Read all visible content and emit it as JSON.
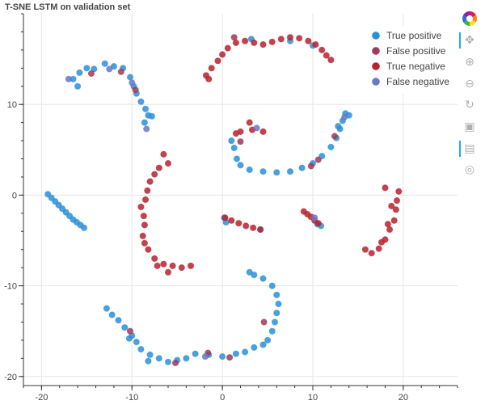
{
  "chart_data": {
    "type": "scatter",
    "title": "T-SNE LSTM on validation set",
    "xlabel": "",
    "ylabel": "",
    "xlim": [
      -22,
      26
    ],
    "ylim": [
      -21,
      20
    ],
    "x_ticks": [
      -20,
      -10,
      0,
      10,
      20
    ],
    "y_ticks": [
      -20,
      -10,
      0,
      10
    ],
    "grid": true,
    "legend_position": "top-right",
    "series": [
      {
        "name": "True positive",
        "color": "#2b8fd8",
        "points": [
          [
            -16.5,
            12.8
          ],
          [
            -15.8,
            13.5
          ],
          [
            -15.0,
            14.0
          ],
          [
            -14.2,
            13.9
          ],
          [
            -13.0,
            14.5
          ],
          [
            -12.0,
            14.2
          ],
          [
            -11.0,
            14.0
          ],
          [
            -10.2,
            13.0
          ],
          [
            -9.8,
            12.0
          ],
          [
            -9.5,
            11.2
          ],
          [
            -9.0,
            10.3
          ],
          [
            -8.5,
            9.5
          ],
          [
            -8.2,
            8.8
          ],
          [
            -8.6,
            8.0
          ],
          [
            -7.8,
            8.7
          ],
          [
            -16.0,
            12.0
          ],
          [
            -19.3,
            0.1
          ],
          [
            -18.9,
            -0.3
          ],
          [
            -18.5,
            -0.7
          ],
          [
            -18.1,
            -1.1
          ],
          [
            -17.7,
            -1.5
          ],
          [
            -17.3,
            -1.9
          ],
          [
            -16.9,
            -2.3
          ],
          [
            -16.5,
            -2.7
          ],
          [
            -16.1,
            -3.0
          ],
          [
            -15.7,
            -3.3
          ],
          [
            -15.3,
            -3.6
          ],
          [
            -12.8,
            -12.5
          ],
          [
            -12.2,
            -13.2
          ],
          [
            -11.5,
            -13.8
          ],
          [
            -10.8,
            -14.6
          ],
          [
            -10.0,
            -15.5
          ],
          [
            -9.5,
            -16.2
          ],
          [
            -9.0,
            -17.0
          ],
          [
            -8.0,
            -17.6
          ],
          [
            -7.0,
            -18.0
          ],
          [
            -6.0,
            -18.4
          ],
          [
            -5.0,
            -18.2
          ],
          [
            -4.0,
            -18.0
          ],
          [
            -3.0,
            -17.5
          ],
          [
            -1.5,
            -17.6
          ],
          [
            0.0,
            -17.8
          ],
          [
            1.5,
            -17.5
          ],
          [
            2.5,
            -17.3
          ],
          [
            3.5,
            -16.8
          ],
          [
            4.5,
            -16.5
          ],
          [
            5.0,
            -16.0
          ],
          [
            5.5,
            -15.0
          ],
          [
            5.8,
            -14.0
          ],
          [
            6.0,
            -13.0
          ],
          [
            6.2,
            -12.0
          ],
          [
            6.0,
            -11.0
          ],
          [
            5.5,
            -10.0
          ],
          [
            4.5,
            -9.2
          ],
          [
            3.5,
            -8.8
          ],
          [
            3.0,
            -8.5
          ],
          [
            -8.2,
            -18.3
          ],
          [
            -10.3,
            -15.8
          ],
          [
            1.0,
            6.0
          ],
          [
            1.3,
            5.2
          ],
          [
            1.6,
            4.0
          ],
          [
            2.0,
            3.3
          ],
          [
            3.0,
            2.8
          ],
          [
            4.5,
            2.6
          ],
          [
            6.0,
            2.5
          ],
          [
            7.5,
            2.6
          ],
          [
            8.8,
            3.0
          ],
          [
            10.0,
            3.5
          ],
          [
            11.0,
            4.3
          ],
          [
            12.0,
            5.3
          ],
          [
            12.6,
            6.3
          ],
          [
            13.0,
            7.3
          ],
          [
            13.3,
            8.2
          ],
          [
            13.6,
            9.0
          ],
          [
            14.0,
            8.8
          ],
          [
            12.8,
            7.6
          ],
          [
            4.2,
            -3.8
          ],
          [
            10.5,
            -3.2
          ],
          [
            10.9,
            -3.4
          ],
          [
            0.4,
            -3.0
          ],
          [
            0.2,
            -2.5
          ],
          [
            3.2,
            17.2
          ],
          [
            7.5,
            17.0
          ],
          [
            10.0,
            16.5
          ]
        ]
      },
      {
        "name": "False positive",
        "color": "#a03a5a",
        "points": [
          [
            -14.5,
            13.4
          ],
          [
            -11.2,
            13.6
          ],
          [
            -9.6,
            11.6
          ],
          [
            2.0,
            5.9
          ],
          [
            9.8,
            3.2
          ],
          [
            12.4,
            6.5
          ],
          [
            -10.2,
            -15.0
          ],
          [
            -5.2,
            -18.5
          ],
          [
            -1.6,
            -17.4
          ],
          [
            0.8,
            -17.9
          ],
          [
            4.6,
            -14.0
          ],
          [
            1.3,
            17.4
          ],
          [
            10.6,
            3.9
          ]
        ]
      },
      {
        "name": "True negative",
        "color": "#b5232f",
        "points": [
          [
            -1.8,
            13.2
          ],
          [
            -1.2,
            14.0
          ],
          [
            -0.5,
            14.8
          ],
          [
            0.0,
            15.5
          ],
          [
            0.6,
            16.2
          ],
          [
            1.5,
            16.8
          ],
          [
            2.5,
            17.0
          ],
          [
            3.5,
            16.8
          ],
          [
            4.5,
            16.6
          ],
          [
            5.5,
            16.9
          ],
          [
            6.5,
            17.2
          ],
          [
            7.5,
            17.4
          ],
          [
            8.5,
            17.3
          ],
          [
            9.5,
            17.0
          ],
          [
            10.3,
            16.6
          ],
          [
            11.0,
            16.0
          ],
          [
            11.5,
            15.4
          ],
          [
            12.0,
            14.9
          ],
          [
            -1.5,
            12.8
          ],
          [
            -6.0,
            3.5
          ],
          [
            -6.5,
            4.5
          ],
          [
            -7.0,
            3.0
          ],
          [
            -7.5,
            2.3
          ],
          [
            -8.0,
            1.5
          ],
          [
            -8.3,
            0.5
          ],
          [
            -8.5,
            -0.5
          ],
          [
            -9.0,
            -1.3
          ],
          [
            -8.7,
            -2.3
          ],
          [
            -8.6,
            -3.3
          ],
          [
            -8.8,
            -4.5
          ],
          [
            -8.6,
            -5.3
          ],
          [
            -8.2,
            -6.0
          ],
          [
            -7.5,
            -7.0
          ],
          [
            -6.5,
            -7.6
          ],
          [
            -5.5,
            -7.8
          ],
          [
            -4.5,
            -8.0
          ],
          [
            -3.5,
            -7.8
          ],
          [
            -7.2,
            -7.8
          ],
          [
            -6.0,
            -8.5
          ],
          [
            0.3,
            -2.5
          ],
          [
            1.0,
            -2.8
          ],
          [
            1.8,
            -3.1
          ],
          [
            2.6,
            -3.4
          ],
          [
            3.4,
            -3.6
          ],
          [
            4.2,
            -3.8
          ],
          [
            9.0,
            -1.8
          ],
          [
            9.4,
            -2.1
          ],
          [
            9.8,
            -2.4
          ],
          [
            10.2,
            -2.8
          ],
          [
            10.6,
            -3.1
          ],
          [
            3.0,
            8.0
          ],
          [
            3.3,
            7.2
          ],
          [
            2.0,
            7.0
          ],
          [
            1.5,
            6.8
          ],
          [
            4.5,
            7.0
          ],
          [
            15.8,
            -6.0
          ],
          [
            16.5,
            -6.4
          ],
          [
            17.3,
            -5.9
          ],
          [
            18.0,
            -4.9
          ],
          [
            18.5,
            -3.8
          ],
          [
            19.0,
            -2.8
          ],
          [
            19.2,
            -1.6
          ],
          [
            19.3,
            -0.6
          ],
          [
            19.5,
            0.4
          ],
          [
            18.0,
            0.8
          ],
          [
            18.7,
            -1.2
          ],
          [
            18.3,
            -3.2
          ],
          [
            17.6,
            -5.2
          ]
        ]
      },
      {
        "name": "False negative",
        "color": "#6a76c8",
        "points": [
          [
            -12.5,
            13.9
          ],
          [
            -10.0,
            12.4
          ],
          [
            -8.4,
            7.3
          ],
          [
            -17.0,
            12.8
          ],
          [
            -1.9,
            -17.8
          ],
          [
            3.8,
            7.4
          ],
          [
            10.2,
            -2.5
          ],
          [
            13.5,
            8.6
          ]
        ]
      }
    ]
  },
  "toolbar": {
    "items": [
      {
        "name": "bokeh-logo",
        "glyph": ""
      },
      {
        "name": "pan-icon",
        "glyph": "✥"
      },
      {
        "name": "box-zoom-icon",
        "glyph": "⚲"
      },
      {
        "name": "wheel-zoom-icon",
        "glyph": "⚲"
      },
      {
        "name": "reset-icon",
        "glyph": "↻"
      },
      {
        "name": "save-icon",
        "glyph": "💾"
      },
      {
        "name": "hover-icon",
        "glyph": "▤"
      },
      {
        "name": "help-icon",
        "glyph": "?"
      }
    ]
  }
}
